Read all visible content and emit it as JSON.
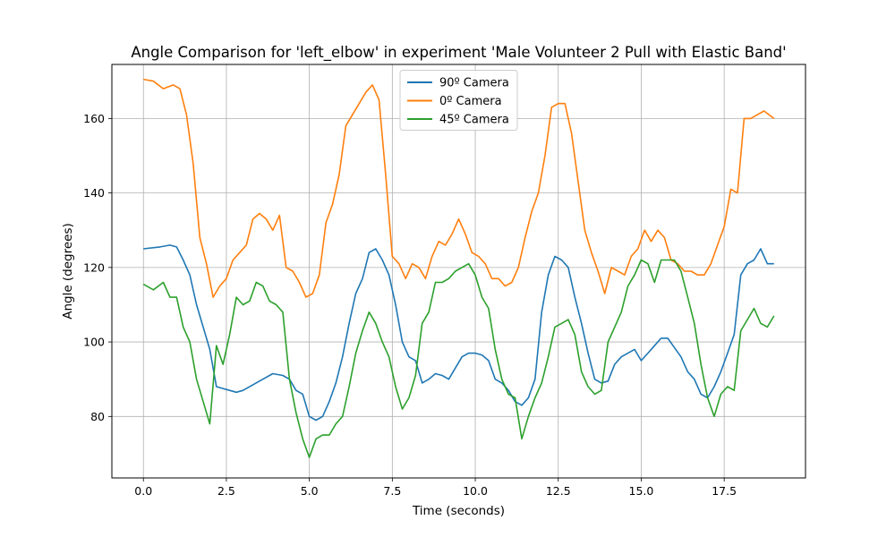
{
  "chart_data": {
    "type": "line",
    "title": "Angle Comparison for 'left_elbow' in experiment 'Male Volunteer 2 Pull with Elastic Band'",
    "xlabel": "Time (seconds)",
    "ylabel": "Angle (degrees)",
    "xlim": [
      -0.95,
      19.95
    ],
    "ylim": [
      63.5,
      174.5
    ],
    "xticks": [
      0.0,
      2.5,
      5.0,
      7.5,
      10.0,
      12.5,
      15.0,
      17.5
    ],
    "xtick_labels": [
      "0.0",
      "2.5",
      "5.0",
      "7.5",
      "10.0",
      "12.5",
      "15.0",
      "17.5"
    ],
    "yticks": [
      80,
      100,
      120,
      140,
      160
    ],
    "ytick_labels": [
      "80",
      "100",
      "120",
      "140",
      "160"
    ],
    "grid": true,
    "legend_position": "top-center",
    "series": [
      {
        "name": "90º Camera",
        "color": "#1f77b4",
        "x": [
          0,
          0.5,
          0.8,
          1.0,
          1.2,
          1.4,
          1.6,
          1.8,
          2.0,
          2.2,
          2.4,
          2.6,
          2.8,
          3.0,
          3.3,
          3.6,
          3.9,
          4.2,
          4.4,
          4.6,
          4.8,
          5.0,
          5.2,
          5.4,
          5.6,
          5.8,
          6.0,
          6.2,
          6.4,
          6.6,
          6.8,
          7.0,
          7.2,
          7.4,
          7.6,
          7.8,
          8.0,
          8.2,
          8.4,
          8.6,
          8.8,
          9.0,
          9.2,
          9.4,
          9.6,
          9.8,
          10.0,
          10.2,
          10.4,
          10.6,
          10.8,
          11.0,
          11.2,
          11.4,
          11.6,
          11.8,
          12.0,
          12.2,
          12.4,
          12.6,
          12.8,
          13.0,
          13.2,
          13.4,
          13.6,
          13.8,
          14.0,
          14.2,
          14.4,
          14.6,
          14.8,
          15.0,
          15.2,
          15.4,
          15.6,
          15.8,
          16.0,
          16.2,
          16.4,
          16.6,
          16.8,
          17.0,
          17.2,
          17.4,
          17.6,
          17.8,
          18.0,
          18.2,
          18.4,
          18.6,
          18.8,
          19.0
        ],
        "y": [
          125,
          125.5,
          126,
          125.5,
          122,
          118,
          110,
          104,
          98,
          88,
          87.5,
          87,
          86.5,
          87,
          88.5,
          90,
          91.5,
          91,
          90,
          87,
          86,
          80,
          79,
          80,
          84,
          89,
          96,
          105,
          113,
          117,
          124,
          125,
          122,
          118,
          110,
          100,
          96,
          95,
          89,
          90,
          91.5,
          91,
          90,
          93,
          96,
          97,
          97,
          96.5,
          95,
          90,
          89,
          87,
          84,
          83,
          85,
          90,
          108,
          118,
          123,
          122,
          120,
          112,
          105,
          97,
          90,
          89,
          89.5,
          94,
          96,
          97,
          98,
          95,
          97,
          99,
          101,
          101,
          98.5,
          96,
          92,
          90,
          86,
          85,
          88,
          92,
          97,
          102,
          118,
          121,
          122,
          125,
          121,
          121
        ]
      },
      {
        "name": "0º Camera",
        "color": "#ff7f0e",
        "x": [
          0,
          0.3,
          0.6,
          0.9,
          1.1,
          1.3,
          1.5,
          1.7,
          1.9,
          2.1,
          2.3,
          2.5,
          2.7,
          2.9,
          3.1,
          3.3,
          3.5,
          3.7,
          3.9,
          4.1,
          4.3,
          4.5,
          4.7,
          4.9,
          5.1,
          5.3,
          5.5,
          5.7,
          5.9,
          6.1,
          6.3,
          6.5,
          6.7,
          6.9,
          7.1,
          7.3,
          7.5,
          7.7,
          7.9,
          8.1,
          8.3,
          8.5,
          8.7,
          8.9,
          9.1,
          9.3,
          9.5,
          9.7,
          9.9,
          10.1,
          10.3,
          10.5,
          10.7,
          10.9,
          11.1,
          11.3,
          11.5,
          11.7,
          11.9,
          12.1,
          12.3,
          12.5,
          12.7,
          12.9,
          13.1,
          13.3,
          13.5,
          13.7,
          13.9,
          14.1,
          14.3,
          14.5,
          14.7,
          14.9,
          15.1,
          15.3,
          15.5,
          15.7,
          15.9,
          16.1,
          16.3,
          16.5,
          16.7,
          16.9,
          17.1,
          17.3,
          17.5,
          17.7,
          17.9,
          18.1,
          18.3,
          18.5,
          18.7,
          19.0
        ],
        "y": [
          170.5,
          170,
          168,
          169,
          168,
          161,
          148,
          128,
          121,
          112,
          115,
          117,
          122,
          124,
          126,
          133,
          134.5,
          133,
          130,
          134,
          120,
          119,
          116,
          112,
          113,
          118,
          132,
          137,
          145,
          158,
          161,
          164,
          167,
          169,
          165,
          145,
          123,
          121,
          117,
          121,
          120,
          117,
          123,
          127,
          126,
          129,
          133,
          129,
          124,
          123,
          121,
          117,
          117,
          115,
          116,
          120,
          128,
          135,
          140,
          150,
          163,
          164,
          164,
          156,
          143,
          130,
          124,
          119,
          113,
          120,
          119,
          118,
          123,
          125,
          130,
          127,
          130,
          128,
          122,
          121,
          119,
          119,
          118,
          118,
          121,
          126,
          131,
          141,
          140,
          160,
          160,
          161,
          162,
          160
        ]
      },
      {
        "name": "45º Camera",
        "color": "#2ca02c",
        "x": [
          0,
          0.3,
          0.6,
          0.8,
          1.0,
          1.2,
          1.4,
          1.6,
          1.8,
          2.0,
          2.2,
          2.4,
          2.6,
          2.8,
          3.0,
          3.2,
          3.4,
          3.6,
          3.8,
          4.0,
          4.2,
          4.4,
          4.6,
          4.8,
          5.0,
          5.2,
          5.4,
          5.6,
          5.8,
          6.0,
          6.2,
          6.4,
          6.6,
          6.8,
          7.0,
          7.2,
          7.4,
          7.6,
          7.8,
          8.0,
          8.2,
          8.4,
          8.6,
          8.8,
          9.0,
          9.2,
          9.4,
          9.6,
          9.8,
          10.0,
          10.2,
          10.4,
          10.6,
          10.8,
          11.0,
          11.2,
          11.4,
          11.6,
          11.8,
          12.0,
          12.2,
          12.4,
          12.6,
          12.8,
          13.0,
          13.2,
          13.4,
          13.6,
          13.8,
          14.0,
          14.2,
          14.4,
          14.6,
          14.8,
          15.0,
          15.2,
          15.4,
          15.6,
          15.8,
          16.0,
          16.2,
          16.4,
          16.6,
          16.8,
          17.0,
          17.2,
          17.4,
          17.6,
          17.8,
          18.0,
          18.2,
          18.4,
          18.6,
          18.8,
          19.0
        ],
        "y": [
          115.5,
          114,
          116,
          112,
          112,
          104,
          100,
          90,
          84,
          78,
          99,
          94,
          102,
          112,
          110,
          111,
          116,
          115,
          111,
          110,
          108,
          90,
          81,
          74,
          69,
          74,
          75,
          75,
          78,
          80,
          88,
          97,
          103,
          108,
          105,
          100,
          96,
          88,
          82,
          85,
          91,
          105,
          108,
          116,
          116,
          117,
          119,
          120,
          121,
          118,
          112,
          109,
          98,
          90,
          86,
          85,
          74,
          80,
          85,
          89,
          96,
          104,
          105,
          106,
          102,
          92,
          88,
          86,
          87,
          100,
          104,
          108,
          115,
          118,
          122,
          121,
          116,
          122,
          122,
          122,
          119,
          112,
          105,
          94,
          85,
          80,
          86,
          88,
          87,
          103,
          106,
          109,
          105,
          104,
          107
        ]
      }
    ]
  }
}
